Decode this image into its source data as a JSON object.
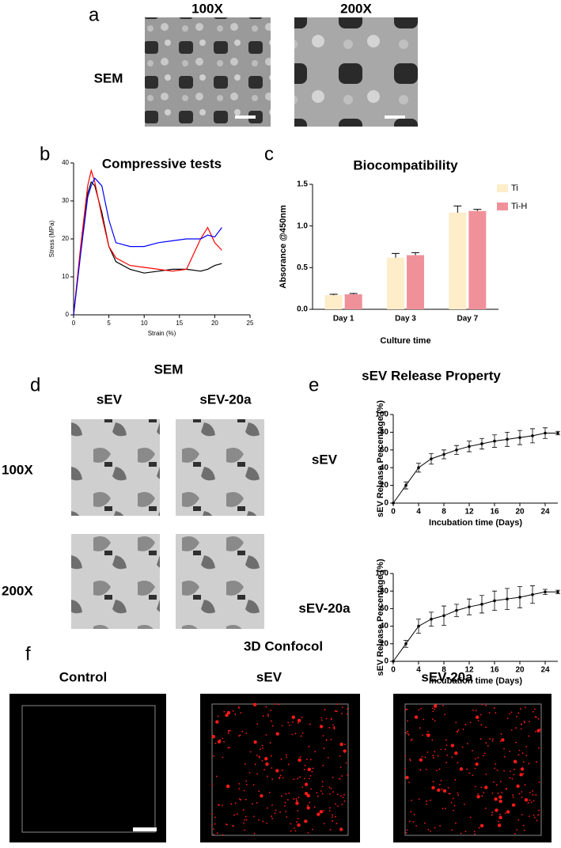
{
  "figure": {
    "panel_labels": [
      "a",
      "b",
      "c",
      "d",
      "e",
      "f"
    ],
    "a": {
      "columns": [
        "100X",
        "200X"
      ],
      "row": "SEM"
    },
    "d": {
      "title": "SEM",
      "columns": [
        "sEV",
        "sEV-20a"
      ],
      "rows": [
        "100X",
        "200X"
      ]
    },
    "e": {
      "title": "sEV Release Property",
      "rows": [
        "sEV",
        "sEV-20a"
      ]
    },
    "f": {
      "title": "3D Confocol",
      "columns": [
        "Control",
        "sEV",
        "sEV-20a"
      ]
    }
  },
  "chart_data": [
    {
      "type": "line",
      "title": "Compressive tests",
      "x_label": "Strain (%)",
      "y_label": "Stress (MPa)",
      "x": [
        0,
        1,
        2,
        2.5,
        3,
        4,
        5,
        6,
        8,
        10,
        12,
        14,
        16,
        18,
        19,
        20,
        21
      ],
      "series": [
        {
          "color": "#000000",
          "values": [
            0,
            17,
            32,
            35,
            34,
            27,
            18,
            14,
            12,
            11,
            11.5,
            12,
            12,
            11.5,
            12,
            13,
            13.5
          ]
        },
        {
          "color": "#ff0000",
          "values": [
            0,
            18,
            34,
            38,
            35,
            26,
            18,
            15,
            13,
            12.5,
            12,
            11.5,
            12,
            20,
            23,
            19,
            17
          ]
        },
        {
          "color": "#0000ff",
          "values": [
            0,
            16,
            31,
            34,
            36,
            34,
            25,
            19,
            18,
            18,
            19,
            19.5,
            20,
            20,
            21,
            20.5,
            23
          ]
        }
      ],
      "xlim": [
        0,
        25
      ],
      "xticks": [
        0,
        5,
        10,
        15,
        20,
        25
      ],
      "ylim": [
        0,
        40
      ],
      "yticks": [
        0,
        10,
        20,
        30,
        40
      ]
    },
    {
      "type": "bar",
      "title": "Biocompatibility",
      "x_label": "Culture time",
      "y_label": "Absorance @450nm",
      "categories": [
        "Day 1",
        "Day 3",
        "Day 7"
      ],
      "series": [
        {
          "name": "Ti",
          "color": "#fdedc8",
          "values": [
            0.17,
            0.62,
            1.16
          ],
          "errors": [
            0.01,
            0.05,
            0.08
          ]
        },
        {
          "name": "Ti-H",
          "color": "#f0919a",
          "values": [
            0.18,
            0.65,
            1.18
          ],
          "errors": [
            0.01,
            0.03,
            0.02
          ]
        }
      ],
      "ylim": [
        0,
        1.5
      ],
      "yticks": [
        {
          "value": 0,
          "label": "0.0"
        },
        0.5,
        {
          "value": 1,
          "label": "1.0"
        },
        1.5
      ],
      "legend": "top-right"
    },
    {
      "type": "line",
      "x_label": "Incubation time (Days)",
      "y_label": "sEV Release Percentage (%)",
      "x": [
        0,
        2,
        4,
        6,
        8,
        10,
        12,
        14,
        16,
        18,
        20,
        22,
        24,
        26
      ],
      "series": [
        {
          "color": "#000000",
          "values": [
            0,
            20,
            40,
            50,
            55,
            60,
            64,
            67,
            70,
            72,
            74,
            76,
            79,
            79
          ],
          "errors": [
            0,
            4,
            5,
            6,
            5,
            5,
            6,
            6,
            7,
            8,
            8,
            8,
            6,
            2
          ]
        }
      ],
      "xlim": [
        0,
        26
      ],
      "xticks": [
        0,
        4,
        8,
        12,
        16,
        20,
        24
      ],
      "ylim": [
        0,
        100
      ],
      "yticks": [
        0,
        20,
        40,
        60,
        80,
        100
      ]
    },
    {
      "type": "line",
      "x_label": "Incubation time (Days)",
      "y_label": "sEV Release Percentage (%)",
      "x": [
        0,
        2,
        4,
        6,
        8,
        10,
        12,
        14,
        16,
        18,
        20,
        22,
        24,
        26
      ],
      "series": [
        {
          "color": "#000000",
          "values": [
            0,
            20,
            40,
            48,
            52,
            58,
            62,
            65,
            69,
            71,
            73,
            76,
            79,
            79
          ],
          "errors": [
            0,
            4,
            8,
            8,
            11,
            7,
            9,
            10,
            11,
            12,
            12,
            10,
            3,
            2
          ]
        }
      ],
      "xlim": [
        0,
        26
      ],
      "xticks": [
        0,
        4,
        8,
        12,
        16,
        20,
        24
      ],
      "ylim": [
        0,
        100
      ],
      "yticks": [
        0,
        20,
        40,
        60,
        80,
        100
      ]
    }
  ]
}
